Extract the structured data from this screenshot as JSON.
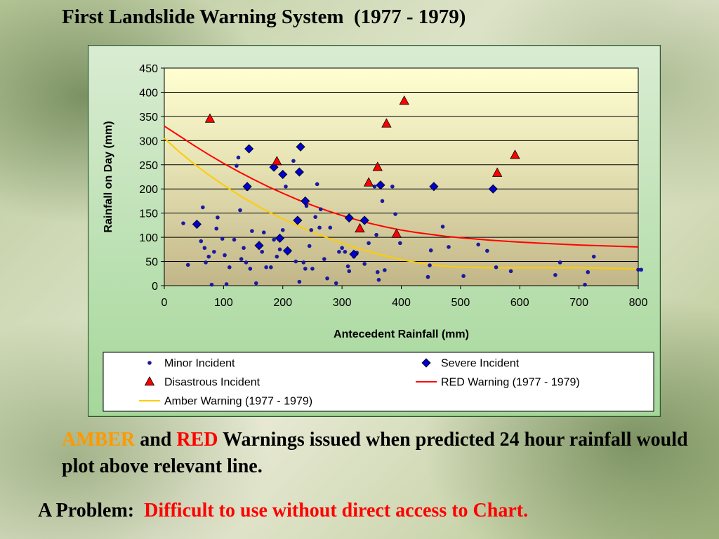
{
  "slide": {
    "title": "First Landslide Warning System  (1977 - 1979)",
    "caption_amber": "AMBER",
    "caption_and": " and ",
    "caption_red": "RED",
    "caption_rest": " Warnings issued when predicted 24 hour rainfall would plot above relevant line.",
    "problem_label": "A Problem:  ",
    "problem_text": "Difficult to use without direct access to Chart."
  },
  "colors": {
    "amber_text": "#ff9900",
    "red_text": "#ff0000",
    "minor": "#1a1aa0",
    "severe": "#0000cc",
    "disastrous": "#ff0000",
    "red_line": "#ff0000",
    "amber_line": "#ffcc00",
    "frame": "#2e5a2e"
  },
  "chart_data": {
    "type": "scatter",
    "xlabel": "Antecedent Rainfall (mm)",
    "ylabel": "Rainfall on Day (mm)",
    "xlim": [
      0,
      800
    ],
    "ylim": [
      0,
      450
    ],
    "xticks": [
      "0",
      "100",
      "200",
      "300",
      "400",
      "500",
      "600",
      "700",
      "800"
    ],
    "yticks": [
      "0",
      "50",
      "100",
      "150",
      "200",
      "250",
      "300",
      "350",
      "400",
      "450"
    ],
    "grid": "horizontal",
    "legend_position": "bottom",
    "series": [
      {
        "name": "Minor Incident",
        "marker": "circle",
        "points": [
          [
            32,
            129
          ],
          [
            40,
            43
          ],
          [
            62,
            92
          ],
          [
            65,
            162
          ],
          [
            68,
            78
          ],
          [
            70,
            48
          ],
          [
            75,
            60
          ],
          [
            80,
            2
          ],
          [
            84,
            70
          ],
          [
            88,
            118
          ],
          [
            90,
            141
          ],
          [
            98,
            97
          ],
          [
            102,
            63
          ],
          [
            105,
            3
          ],
          [
            110,
            38
          ],
          [
            118,
            95
          ],
          [
            122,
            248
          ],
          [
            125,
            265
          ],
          [
            128,
            156
          ],
          [
            130,
            55
          ],
          [
            134,
            78
          ],
          [
            138,
            48
          ],
          [
            140,
            200
          ],
          [
            145,
            35
          ],
          [
            148,
            113
          ],
          [
            155,
            5
          ],
          [
            160,
            85
          ],
          [
            165,
            70
          ],
          [
            168,
            110
          ],
          [
            172,
            38
          ],
          [
            180,
            38
          ],
          [
            185,
            95
          ],
          [
            190,
            60
          ],
          [
            195,
            75
          ],
          [
            200,
            115
          ],
          [
            205,
            205
          ],
          [
            210,
            70
          ],
          [
            218,
            258
          ],
          [
            222,
            50
          ],
          [
            228,
            8
          ],
          [
            235,
            48
          ],
          [
            238,
            35
          ],
          [
            240,
            165
          ],
          [
            245,
            82
          ],
          [
            248,
            115
          ],
          [
            250,
            35
          ],
          [
            255,
            142
          ],
          [
            258,
            210
          ],
          [
            262,
            120
          ],
          [
            264,
            158
          ],
          [
            270,
            55
          ],
          [
            275,
            15
          ],
          [
            280,
            120
          ],
          [
            290,
            5
          ],
          [
            295,
            70
          ],
          [
            300,
            78
          ],
          [
            305,
            70
          ],
          [
            310,
            40
          ],
          [
            312,
            30
          ],
          [
            320,
            60
          ],
          [
            325,
            68
          ],
          [
            330,
            115
          ],
          [
            338,
            45
          ],
          [
            345,
            88
          ],
          [
            355,
            205
          ],
          [
            358,
            105
          ],
          [
            360,
            28
          ],
          [
            362,
            12
          ],
          [
            368,
            175
          ],
          [
            372,
            32
          ],
          [
            385,
            205
          ],
          [
            390,
            148
          ],
          [
            398,
            88
          ],
          [
            445,
            18
          ],
          [
            448,
            42
          ],
          [
            450,
            73
          ],
          [
            470,
            122
          ],
          [
            480,
            80
          ],
          [
            505,
            20
          ],
          [
            530,
            85
          ],
          [
            545,
            72
          ],
          [
            560,
            38
          ],
          [
            585,
            30
          ],
          [
            660,
            22
          ],
          [
            668,
            48
          ],
          [
            710,
            2
          ],
          [
            715,
            28
          ],
          [
            725,
            60
          ],
          [
            800,
            33
          ],
          [
            805,
            33
          ]
        ]
      },
      {
        "name": "Severe Incident",
        "marker": "diamond",
        "points": [
          [
            55,
            127
          ],
          [
            143,
            283
          ],
          [
            140,
            205
          ],
          [
            160,
            83
          ],
          [
            185,
            245
          ],
          [
            195,
            98
          ],
          [
            200,
            230
          ],
          [
            208,
            72
          ],
          [
            225,
            135
          ],
          [
            228,
            235
          ],
          [
            230,
            287
          ],
          [
            238,
            175
          ],
          [
            312,
            140
          ],
          [
            320,
            65
          ],
          [
            338,
            135
          ],
          [
            365,
            208
          ],
          [
            455,
            205
          ],
          [
            555,
            200
          ]
        ]
      },
      {
        "name": "Disastrous Incident",
        "marker": "triangle",
        "points": [
          [
            77,
            345
          ],
          [
            190,
            257
          ],
          [
            330,
            118
          ],
          [
            345,
            213
          ],
          [
            360,
            245
          ],
          [
            375,
            335
          ],
          [
            392,
            107
          ],
          [
            405,
            382
          ],
          [
            562,
            233
          ],
          [
            592,
            270
          ]
        ]
      },
      {
        "name": "RED Warning (1977 - 1979)",
        "marker": "line",
        "points": [
          [
            0,
            330
          ],
          [
            25,
            310
          ],
          [
            50,
            290
          ],
          [
            75,
            271
          ],
          [
            100,
            253
          ],
          [
            125,
            236
          ],
          [
            150,
            220
          ],
          [
            175,
            205
          ],
          [
            200,
            191
          ],
          [
            225,
            178
          ],
          [
            250,
            166
          ],
          [
            275,
            155
          ],
          [
            300,
            145
          ],
          [
            325,
            136
          ],
          [
            350,
            128
          ],
          [
            375,
            121
          ],
          [
            400,
            115
          ],
          [
            425,
            110
          ],
          [
            450,
            106
          ],
          [
            475,
            102
          ],
          [
            500,
            99
          ],
          [
            550,
            94
          ],
          [
            600,
            90
          ],
          [
            650,
            87
          ],
          [
            700,
            84
          ],
          [
            750,
            82
          ],
          [
            800,
            80
          ]
        ]
      },
      {
        "name": "Amber Warning (1977 - 1979)",
        "marker": "line",
        "points": [
          [
            0,
            305
          ],
          [
            25,
            277
          ],
          [
            50,
            252
          ],
          [
            75,
            229
          ],
          [
            100,
            208
          ],
          [
            125,
            188
          ],
          [
            150,
            170
          ],
          [
            175,
            153
          ],
          [
            200,
            138
          ],
          [
            225,
            124
          ],
          [
            250,
            111
          ],
          [
            275,
            99
          ],
          [
            300,
            88
          ],
          [
            325,
            78
          ],
          [
            350,
            69
          ],
          [
            375,
            61
          ],
          [
            400,
            54
          ],
          [
            425,
            48
          ],
          [
            450,
            43
          ],
          [
            475,
            40
          ],
          [
            500,
            38
          ],
          [
            550,
            37
          ],
          [
            600,
            37
          ],
          [
            650,
            37
          ],
          [
            700,
            37
          ],
          [
            750,
            36
          ],
          [
            800,
            35
          ]
        ]
      }
    ]
  }
}
